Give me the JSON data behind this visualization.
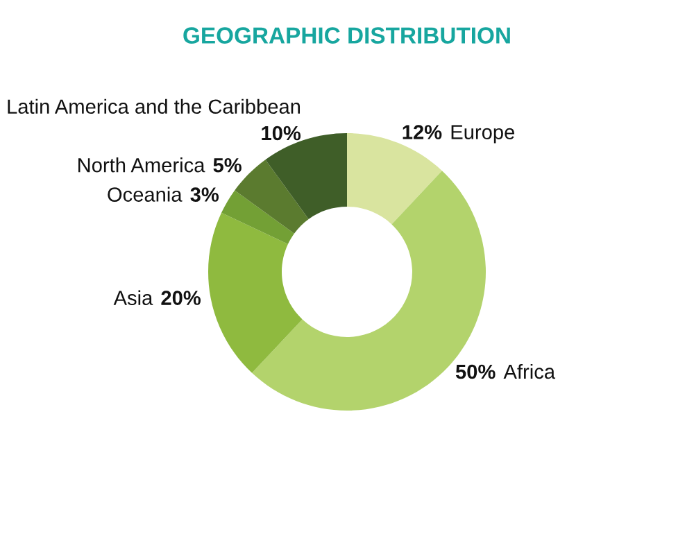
{
  "chart_data": {
    "type": "donut",
    "title": "GEOGRAPHIC DISTRIBUTION",
    "categories": [
      "Europe",
      "Africa",
      "Asia",
      "Oceania",
      "North America",
      "Latin America and the Caribbean"
    ],
    "values": [
      12,
      50,
      20,
      3,
      5,
      10
    ],
    "value_labels": [
      "12%",
      "50%",
      "20%",
      "3%",
      "5%",
      "10%"
    ],
    "colors": [
      "#d9e49f",
      "#b3d36c",
      "#8fba3f",
      "#73a035",
      "#5b7b2f",
      "#3f5e28"
    ],
    "legend": false
  }
}
